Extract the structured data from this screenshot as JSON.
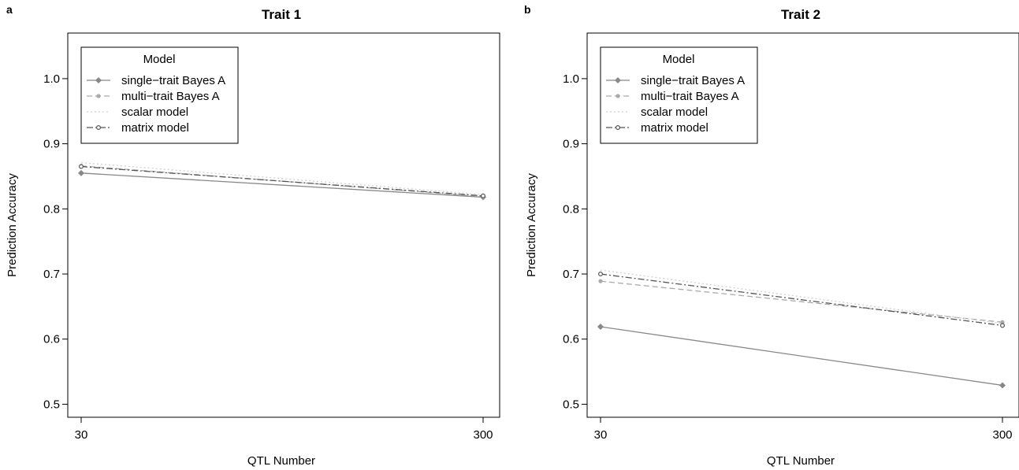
{
  "chart_data": [
    {
      "type": "line",
      "panel_label": "a",
      "title": "Trait 1",
      "xlabel": "QTL Number",
      "ylabel": "Prediction Accuracy",
      "categories": [
        "30",
        "300"
      ],
      "x_tick_labels": [
        "30",
        "300"
      ],
      "ylim": [
        0.48,
        1.07
      ],
      "y_ticks": [
        0.5,
        0.6,
        0.7,
        0.8,
        0.9,
        1.0
      ],
      "y_tick_labels": [
        "0.5",
        "0.6",
        "0.7",
        "0.8",
        "0.9",
        "1.0"
      ],
      "grid": false,
      "legend": {
        "title": "Model",
        "position": "top-left"
      },
      "series": [
        {
          "name": "single−trait Bayes A",
          "values": [
            0.855,
            0.818
          ],
          "color": "#888888",
          "dash": "solid",
          "marker": "diamond"
        },
        {
          "name": "multi−trait Bayes A",
          "values": [
            0.866,
            0.819
          ],
          "color": "#aaaaaa",
          "dash": "dashed",
          "marker": "circle"
        },
        {
          "name": "scalar model",
          "values": [
            0.871,
            0.822
          ],
          "color": "#d0d0d0",
          "dash": "dotted",
          "marker": "none"
        },
        {
          "name": "matrix model",
          "values": [
            0.865,
            0.82
          ],
          "color": "#555555",
          "dash": "dotdash",
          "marker": "open-circle"
        }
      ]
    },
    {
      "type": "line",
      "panel_label": "b",
      "title": "Trait 2",
      "xlabel": "QTL Number",
      "ylabel": "Prediction Accuracy",
      "categories": [
        "30",
        "300"
      ],
      "x_tick_labels": [
        "30",
        "300"
      ],
      "ylim": [
        0.48,
        1.07
      ],
      "y_ticks": [
        0.5,
        0.6,
        0.7,
        0.8,
        0.9,
        1.0
      ],
      "y_tick_labels": [
        "0.5",
        "0.6",
        "0.7",
        "0.8",
        "0.9",
        "1.0"
      ],
      "grid": false,
      "legend": {
        "title": "Model",
        "position": "top-left"
      },
      "series": [
        {
          "name": "single−trait Bayes A",
          "values": [
            0.619,
            0.529
          ],
          "color": "#888888",
          "dash": "solid",
          "marker": "diamond"
        },
        {
          "name": "multi−trait Bayes A",
          "values": [
            0.689,
            0.626
          ],
          "color": "#aaaaaa",
          "dash": "dashed",
          "marker": "circle"
        },
        {
          "name": "scalar model",
          "values": [
            0.706,
            0.624
          ],
          "color": "#d0d0d0",
          "dash": "dotted",
          "marker": "none"
        },
        {
          "name": "matrix model",
          "values": [
            0.7,
            0.621
          ],
          "color": "#555555",
          "dash": "dotdash",
          "marker": "open-circle"
        }
      ]
    }
  ]
}
